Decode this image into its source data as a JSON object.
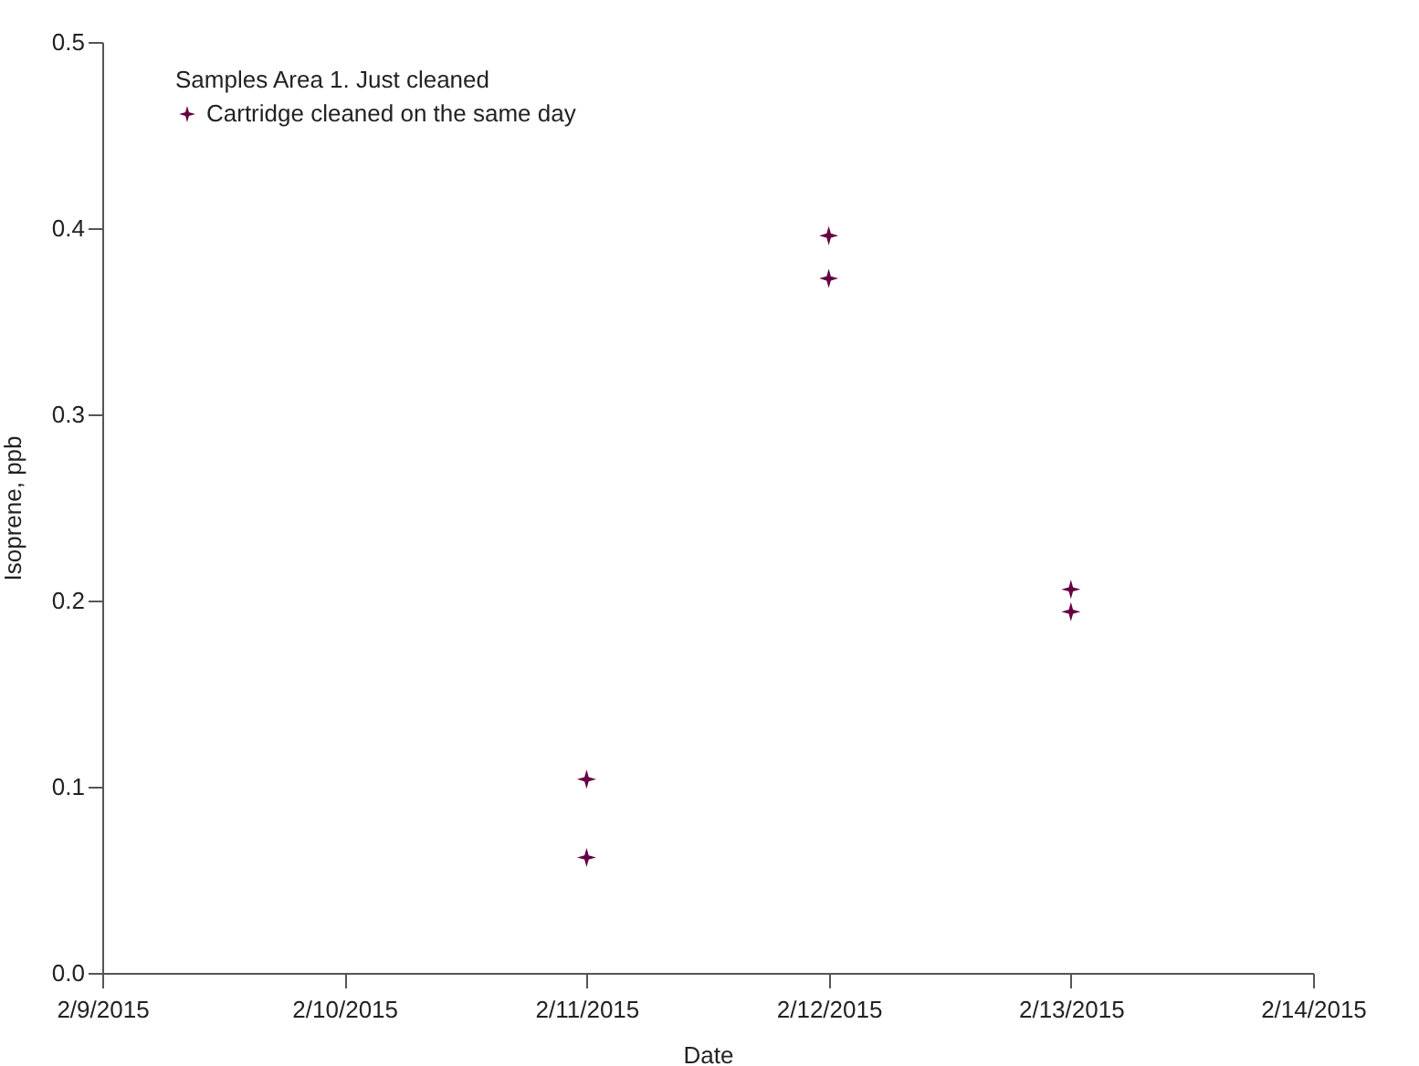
{
  "chart_data": {
    "type": "scatter",
    "xlabel": "Date",
    "ylabel": "Isoprene, ppb",
    "legend_title": "Samples Area 1. Just cleaned",
    "series": [
      {
        "name": "Cartridge cleaned on the same day",
        "color": "#660044",
        "x": [
          "2015-02-11",
          "2015-02-11",
          "2015-02-12",
          "2015-02-12",
          "2015-02-13",
          "2015-02-13"
        ],
        "values": [
          0.104,
          0.062,
          0.396,
          0.373,
          0.206,
          0.194
        ]
      }
    ],
    "xlim": [
      "2015-02-09",
      "2015-02-14"
    ],
    "xticks": [
      {
        "value": "2015-02-09",
        "label": "2/9/2015"
      },
      {
        "value": "2015-02-10",
        "label": "2/10/2015"
      },
      {
        "value": "2015-02-11",
        "label": "2/11/2015"
      },
      {
        "value": "2015-02-12",
        "label": "2/12/2015"
      },
      {
        "value": "2015-02-13",
        "label": "2/13/2015"
      },
      {
        "value": "2015-02-14",
        "label": "2/14/2015"
      }
    ],
    "ylim": [
      0,
      0.5
    ],
    "yticks": [
      {
        "value": 0,
        "label": "0.0"
      },
      {
        "value": 0.1,
        "label": "0.1"
      },
      {
        "value": 0.2,
        "label": "0.2"
      },
      {
        "value": 0.3,
        "label": "0.3"
      },
      {
        "value": 0.4,
        "label": "0.4"
      },
      {
        "value": 0.5,
        "label": "0.5"
      }
    ],
    "grid": false,
    "legend": "top left",
    "marker": "star"
  }
}
